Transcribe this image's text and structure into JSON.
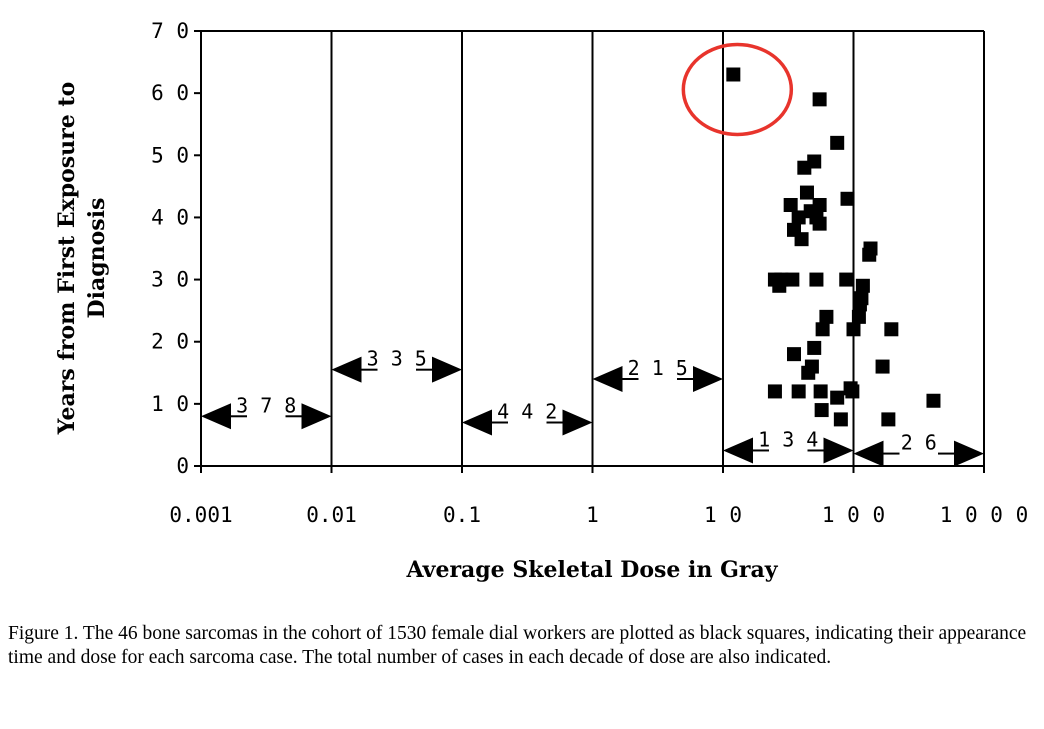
{
  "chart_data": {
    "type": "scatter",
    "xlabel": "Average Skeletal Dose in Gray",
    "ylabel_lines": [
      "Years from First Exposure to",
      "Diagnosis"
    ],
    "x_scale": "log",
    "xlim": [
      0.001,
      1000
    ],
    "ylim": [
      0,
      70
    ],
    "x_ticks": [
      "0.001",
      "0.01",
      "0.1",
      "1",
      "1 0",
      "1 0 0",
      "1 0 0 0"
    ],
    "x_tick_values": [
      0.001,
      0.01,
      0.1,
      1,
      10,
      100,
      1000
    ],
    "y_ticks": [
      "0",
      "1 0",
      "2 0",
      "3 0",
      "4 0",
      "5 0",
      "6 0",
      "7 0"
    ],
    "y_tick_values": [
      0,
      10,
      20,
      30,
      40,
      50,
      60,
      70
    ],
    "grid": "vertical lines at each decade",
    "marker": "filled black square",
    "points": [
      [
        12,
        63
      ],
      [
        55,
        59
      ],
      [
        75,
        52
      ],
      [
        50,
        49
      ],
      [
        42,
        48
      ],
      [
        90,
        43
      ],
      [
        44,
        44
      ],
      [
        33,
        42
      ],
      [
        55,
        42
      ],
      [
        38,
        40
      ],
      [
        52,
        40
      ],
      [
        47,
        41
      ],
      [
        35,
        38
      ],
      [
        40,
        36.5
      ],
      [
        55,
        39
      ],
      [
        135,
        35
      ],
      [
        132,
        34
      ],
      [
        25,
        30
      ],
      [
        28,
        30
      ],
      [
        34,
        30
      ],
      [
        52,
        30
      ],
      [
        88,
        30
      ],
      [
        118,
        29
      ],
      [
        27,
        29
      ],
      [
        115,
        27
      ],
      [
        112,
        26
      ],
      [
        110,
        24
      ],
      [
        62,
        24
      ],
      [
        58,
        22
      ],
      [
        100,
        22
      ],
      [
        195,
        22
      ],
      [
        35,
        18
      ],
      [
        50,
        19
      ],
      [
        45,
        15
      ],
      [
        167,
        16
      ],
      [
        25,
        12
      ],
      [
        38,
        12
      ],
      [
        56,
        12
      ],
      [
        95,
        12.5
      ],
      [
        98,
        12
      ],
      [
        75,
        11
      ],
      [
        57,
        9
      ],
      [
        410,
        10.5
      ],
      [
        48,
        16
      ],
      [
        80,
        7.5
      ],
      [
        185,
        7.5
      ]
    ],
    "decade_counts": [
      {
        "label": "3 7 8",
        "from": 0.001,
        "to": 0.01,
        "y": 8
      },
      {
        "label": "3 3 5",
        "from": 0.01,
        "to": 0.1,
        "y": 15.5
      },
      {
        "label": "4 4 2",
        "from": 0.1,
        "to": 1,
        "y": 7
      },
      {
        "label": "2 1 5",
        "from": 1,
        "to": 10,
        "y": 14
      },
      {
        "label": "1 3 4",
        "from": 10,
        "to": 100,
        "y": 2.5
      },
      {
        "label": "2 6",
        "from": 100,
        "to": 1000,
        "y": 2
      }
    ],
    "highlight": {
      "x": 12,
      "y": 63,
      "color": "#e8342c",
      "shape": "circle"
    }
  },
  "caption": "Figure 1.  The 46 bone sarcomas in the cohort of 1530 female dial workers are plotted as black squares, indicating their appearance time and dose for each sarcoma case.  The total number of cases in each decade of dose are also indicated."
}
